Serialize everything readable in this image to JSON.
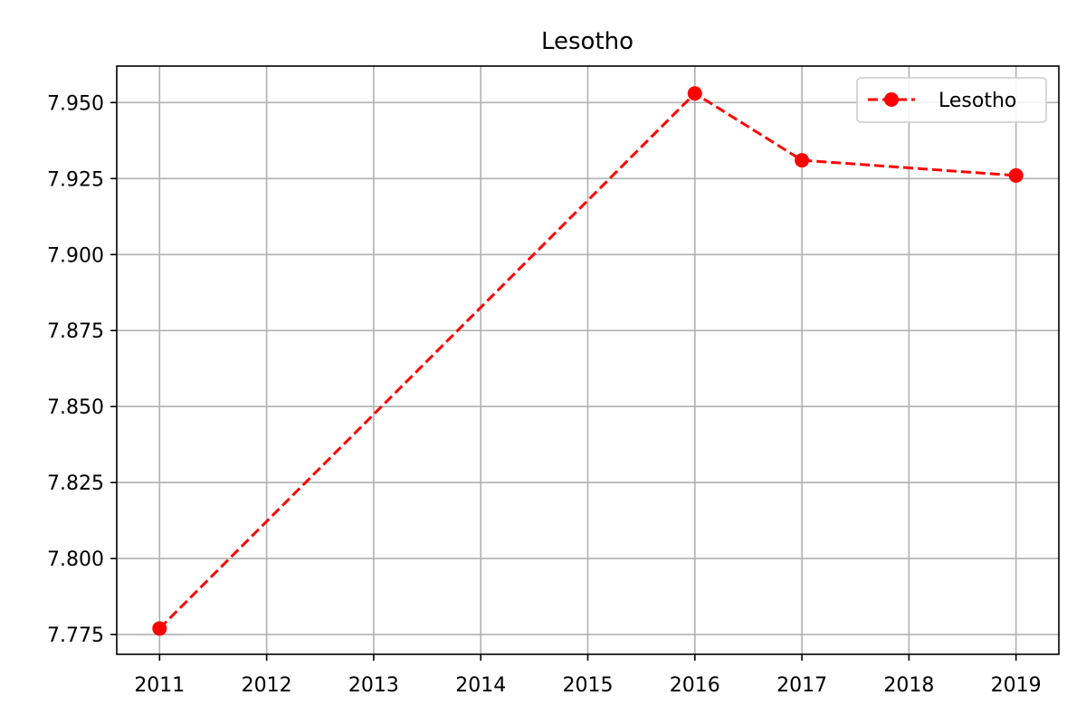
{
  "chart_data": {
    "type": "line",
    "title": "Lesotho",
    "xlabel": "",
    "ylabel": "",
    "x": [
      2011,
      2016,
      2017,
      2019
    ],
    "xticks": [
      "2011",
      "2012",
      "2013",
      "2014",
      "2015",
      "2016",
      "2017",
      "2018",
      "2019"
    ],
    "yticks": [
      "7.775",
      "7.800",
      "7.825",
      "7.850",
      "7.875",
      "7.900",
      "7.925",
      "7.950"
    ],
    "xlim": [
      2010.6,
      2019.4
    ],
    "ylim": [
      7.7685,
      7.962
    ],
    "grid": true,
    "legend_position": "top-right",
    "series": [
      {
        "name": "Lesotho",
        "color": "#ff0000",
        "line_style": "dashed",
        "marker": "circle",
        "values": [
          7.777,
          7.953,
          7.931,
          7.926
        ]
      }
    ]
  }
}
